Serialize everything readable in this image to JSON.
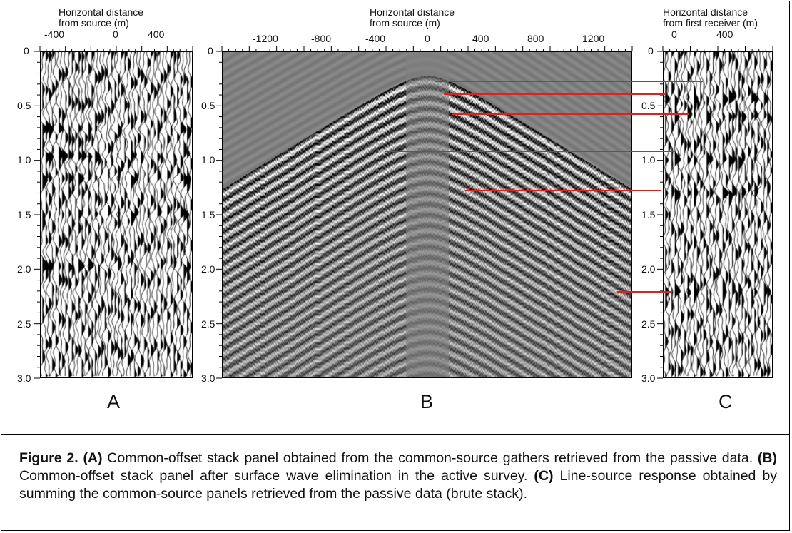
{
  "panels": {
    "A": {
      "letter": "A",
      "title_line1": "Horizontal distance",
      "title_line2": "from source (m)",
      "x_ticks": [
        "-400",
        "0",
        "400"
      ],
      "y_ticks": [
        "0",
        "0.5",
        "1.0",
        "1.5",
        "2.0",
        "2.5",
        "3.0"
      ]
    },
    "B": {
      "letter": "B",
      "title_line1": "Horizontal distance",
      "title_line2": "from source (m)",
      "x_ticks": [
        "-1200",
        "-800",
        "-400",
        "0",
        "400",
        "800",
        "1200"
      ],
      "y_ticks": [
        "0",
        "0.5",
        "1.0",
        "1.5",
        "2.0",
        "2.5",
        "3.0"
      ]
    },
    "C": {
      "letter": "C",
      "title_line1": "Horizontal distance",
      "title_line2": "from first receiver (m)",
      "x_ticks": [
        "0",
        "400"
      ],
      "y_ticks": [
        "0",
        "0.5",
        "1.0",
        "1.5",
        "2.0",
        "2.5",
        "3.0"
      ]
    }
  },
  "caption": {
    "figure_label": "Figure 2.",
    "a_label": "(A)",
    "a_text": " Common-offset stack panel obtained from the common-source gathers retrieved from the passive data. ",
    "b_label": "(B)",
    "b_text": " Common-offset stack panel after surface wave elimination in the active survey. ",
    "c_label": "(C)",
    "c_text": " Line-source response obtained by summing the common-source panels retrieved from the passive data (brute stack)."
  },
  "colors": {
    "marker_lines": "#e02020",
    "frame": "#000000"
  },
  "icons": [
    "seismic-section-a",
    "seismic-section-b",
    "seismic-section-c"
  ]
}
